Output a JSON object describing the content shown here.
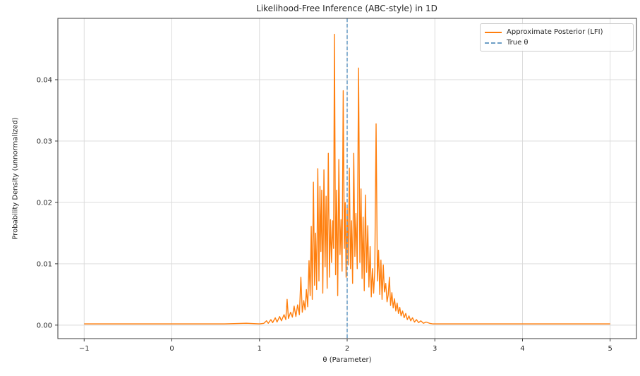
{
  "chart_data": {
    "type": "line",
    "title": "Likelihood-Free Inference (ABC-style) in 1D",
    "xlabel": "θ (Parameter)",
    "ylabel": "Probability Density (unnormalized)",
    "xlim": [
      -1.3,
      5.3
    ],
    "ylim": [
      -0.0022,
      0.05
    ],
    "grid": true,
    "background": "#ffffff",
    "grid_color": "#d9d9d9",
    "spine_color": "#3c3c3c",
    "tick_color": "#3c3c3c",
    "text_color": "#262626",
    "x_ticks": [
      -1,
      0,
      1,
      2,
      3,
      4,
      5
    ],
    "x_tick_labels": [
      "−1",
      "0",
      "1",
      "2",
      "3",
      "4",
      "5"
    ],
    "y_ticks": [
      0.0,
      0.01,
      0.02,
      0.03,
      0.04
    ],
    "y_tick_labels": [
      "0.00",
      "0.01",
      "0.02",
      "0.03",
      "0.04"
    ],
    "legend": {
      "position": "upper right"
    },
    "series": [
      {
        "name": "Approximate Posterior (LFI)",
        "type": "line",
        "color": "#ff7f0e",
        "style": "solid",
        "linewidth": 1.4,
        "points": [
          [
            -1.0,
            0.0002
          ],
          [
            -0.6,
            0.0002
          ],
          [
            -0.2,
            0.0002
          ],
          [
            0.2,
            0.0002
          ],
          [
            0.6,
            0.0002
          ],
          [
            0.85,
            0.0003
          ],
          [
            1.0,
            0.0002
          ],
          [
            1.05,
            0.0003
          ],
          [
            1.08,
            0.0007
          ],
          [
            1.1,
            0.0003
          ],
          [
            1.13,
            0.0009
          ],
          [
            1.15,
            0.0004
          ],
          [
            1.18,
            0.0012
          ],
          [
            1.2,
            0.0005
          ],
          [
            1.23,
            0.0014
          ],
          [
            1.25,
            0.0007
          ],
          [
            1.28,
            0.0017
          ],
          [
            1.3,
            0.0009
          ],
          [
            1.315,
            0.0042
          ],
          [
            1.33,
            0.0011
          ],
          [
            1.355,
            0.0021
          ],
          [
            1.375,
            0.0013
          ],
          [
            1.395,
            0.0031
          ],
          [
            1.415,
            0.0014
          ],
          [
            1.435,
            0.0033
          ],
          [
            1.455,
            0.0017
          ],
          [
            1.472,
            0.0078
          ],
          [
            1.488,
            0.0021
          ],
          [
            1.505,
            0.004
          ],
          [
            1.52,
            0.0025
          ],
          [
            1.535,
            0.0058
          ],
          [
            1.55,
            0.003
          ],
          [
            1.565,
            0.0105
          ],
          [
            1.578,
            0.0048
          ],
          [
            1.59,
            0.0161
          ],
          [
            1.602,
            0.0042
          ],
          [
            1.615,
            0.0233
          ],
          [
            1.628,
            0.0065
          ],
          [
            1.64,
            0.015
          ],
          [
            1.652,
            0.0058
          ],
          [
            1.665,
            0.0255
          ],
          [
            1.678,
            0.0072
          ],
          [
            1.69,
            0.0226
          ],
          [
            1.7,
            0.012
          ],
          [
            1.71,
            0.022
          ],
          [
            1.722,
            0.0052
          ],
          [
            1.735,
            0.0253
          ],
          [
            1.748,
            0.0095
          ],
          [
            1.76,
            0.021
          ],
          [
            1.772,
            0.006
          ],
          [
            1.785,
            0.028
          ],
          [
            1.798,
            0.0078
          ],
          [
            1.81,
            0.0172
          ],
          [
            1.822,
            0.0102
          ],
          [
            1.835,
            0.017
          ],
          [
            1.845,
            0.0125
          ],
          [
            1.855,
            0.0474
          ],
          [
            1.868,
            0.0082
          ],
          [
            1.88,
            0.022
          ],
          [
            1.892,
            0.0048
          ],
          [
            1.905,
            0.027
          ],
          [
            1.918,
            0.0115
          ],
          [
            1.93,
            0.0172
          ],
          [
            1.942,
            0.0088
          ],
          [
            1.955,
            0.0382
          ],
          [
            1.968,
            0.0125
          ],
          [
            1.978,
            0.02
          ],
          [
            1.988,
            0.0078
          ],
          [
            2.0,
            0.0192
          ],
          [
            2.012,
            0.0098
          ],
          [
            2.025,
            0.0256
          ],
          [
            2.038,
            0.0092
          ],
          [
            2.05,
            0.017
          ],
          [
            2.062,
            0.0068
          ],
          [
            2.075,
            0.028
          ],
          [
            2.088,
            0.0112
          ],
          [
            2.1,
            0.0182
          ],
          [
            2.115,
            0.0092
          ],
          [
            2.13,
            0.0419
          ],
          [
            2.145,
            0.0102
          ],
          [
            2.158,
            0.0222
          ],
          [
            2.17,
            0.0076
          ],
          [
            2.182,
            0.0176
          ],
          [
            2.195,
            0.0056
          ],
          [
            2.208,
            0.0212
          ],
          [
            2.222,
            0.0086
          ],
          [
            2.235,
            0.0162
          ],
          [
            2.248,
            0.0062
          ],
          [
            2.262,
            0.0128
          ],
          [
            2.275,
            0.0046
          ],
          [
            2.288,
            0.0092
          ],
          [
            2.302,
            0.0052
          ],
          [
            2.315,
            0.0088
          ],
          [
            2.33,
            0.0328
          ],
          [
            2.345,
            0.0072
          ],
          [
            2.358,
            0.0122
          ],
          [
            2.372,
            0.005
          ],
          [
            2.385,
            0.0106
          ],
          [
            2.398,
            0.0042
          ],
          [
            2.412,
            0.0098
          ],
          [
            2.425,
            0.0054
          ],
          [
            2.44,
            0.0068
          ],
          [
            2.455,
            0.0038
          ],
          [
            2.468,
            0.0049
          ],
          [
            2.482,
            0.0078
          ],
          [
            2.495,
            0.0032
          ],
          [
            2.51,
            0.0053
          ],
          [
            2.525,
            0.0028
          ],
          [
            2.54,
            0.0043
          ],
          [
            2.555,
            0.0023
          ],
          [
            2.57,
            0.0036
          ],
          [
            2.585,
            0.0019
          ],
          [
            2.6,
            0.0029
          ],
          [
            2.615,
            0.0015
          ],
          [
            2.632,
            0.0023
          ],
          [
            2.65,
            0.0012
          ],
          [
            2.668,
            0.0019
          ],
          [
            2.686,
            0.0009
          ],
          [
            2.705,
            0.0015
          ],
          [
            2.725,
            0.0007
          ],
          [
            2.745,
            0.0012
          ],
          [
            2.768,
            0.0005
          ],
          [
            2.79,
            0.0009
          ],
          [
            2.815,
            0.0004
          ],
          [
            2.84,
            0.0007
          ],
          [
            2.87,
            0.0003
          ],
          [
            2.9,
            0.0005
          ],
          [
            2.94,
            0.0003
          ],
          [
            2.98,
            0.0002
          ],
          [
            3.1,
            0.0002
          ],
          [
            3.4,
            0.0002
          ],
          [
            3.8,
            0.0002
          ],
          [
            4.2,
            0.0002
          ],
          [
            4.6,
            0.0002
          ],
          [
            5.0,
            0.0002
          ]
        ]
      },
      {
        "name": "True θ",
        "type": "vline",
        "color": "#6d9ec6",
        "style": "dashed",
        "linewidth": 1.6,
        "x": 2.0
      }
    ]
  }
}
